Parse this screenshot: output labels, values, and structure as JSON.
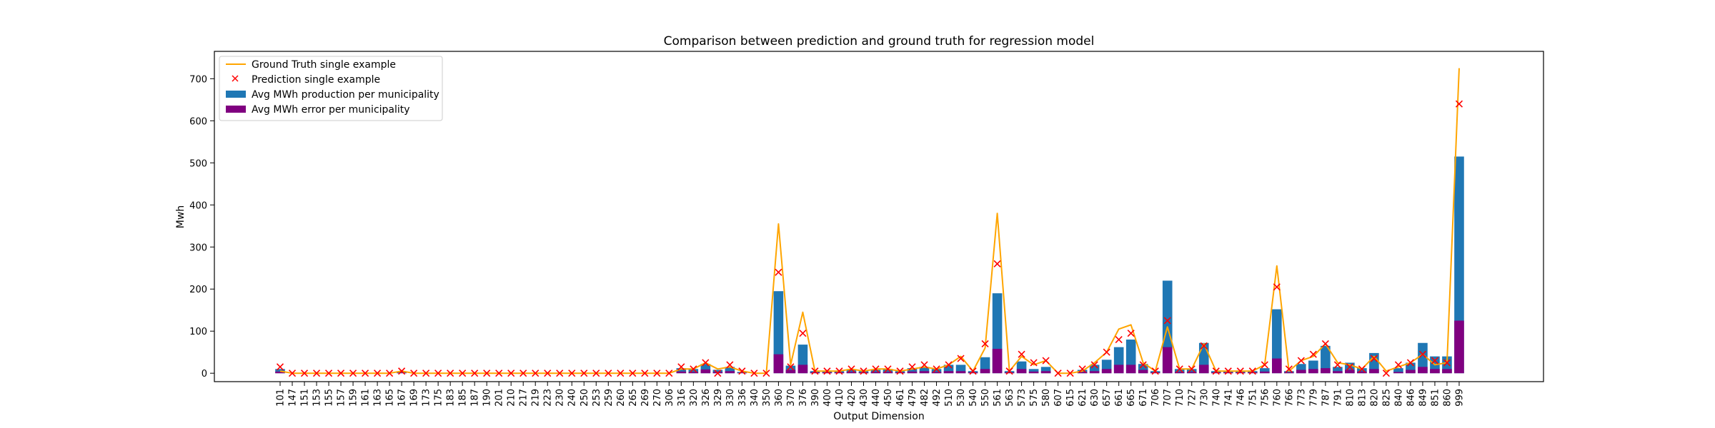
{
  "chart_data": {
    "type": "bar",
    "title": "Comparison between prediction and ground truth for regression model",
    "xlabel": "Output Dimension",
    "ylabel": "Mwh",
    "ylim": [
      -20,
      765
    ],
    "yticks": [
      0,
      100,
      200,
      300,
      400,
      500,
      600,
      700
    ],
    "grid": false,
    "legend_position": "top-left",
    "categories": [
      "101",
      "147",
      "151",
      "153",
      "155",
      "157",
      "159",
      "161",
      "163",
      "165",
      "167",
      "169",
      "173",
      "175",
      "183",
      "185",
      "187",
      "190",
      "201",
      "210",
      "217",
      "219",
      "223",
      "230",
      "240",
      "250",
      "253",
      "259",
      "260",
      "265",
      "269",
      "270",
      "306",
      "316",
      "320",
      "326",
      "329",
      "330",
      "336",
      "340",
      "350",
      "360",
      "370",
      "376",
      "390",
      "400",
      "410",
      "420",
      "430",
      "440",
      "450",
      "461",
      "479",
      "482",
      "492",
      "510",
      "530",
      "540",
      "550",
      "561",
      "563",
      "573",
      "575",
      "580",
      "607",
      "615",
      "621",
      "630",
      "657",
      "661",
      "665",
      "671",
      "706",
      "707",
      "710",
      "727",
      "730",
      "740",
      "741",
      "746",
      "751",
      "756",
      "760",
      "766",
      "773",
      "779",
      "787",
      "791",
      "810",
      "813",
      "820",
      "825",
      "840",
      "846",
      "849",
      "851",
      "860",
      "999"
    ],
    "series": [
      {
        "name": "Ground Truth single example",
        "kind": "line",
        "color": "#ffa500",
        "values": [
          5,
          0,
          0,
          0,
          0,
          0,
          0,
          0,
          0,
          0,
          5,
          0,
          0,
          0,
          0,
          0,
          0,
          0,
          0,
          0,
          0,
          0,
          0,
          0,
          0,
          0,
          0,
          0,
          0,
          0,
          0,
          0,
          0,
          10,
          10,
          25,
          10,
          15,
          5,
          0,
          0,
          355,
          20,
          145,
          5,
          5,
          5,
          10,
          5,
          10,
          10,
          5,
          10,
          15,
          10,
          20,
          40,
          5,
          60,
          380,
          5,
          40,
          20,
          30,
          0,
          0,
          5,
          25,
          50,
          105,
          115,
          25,
          5,
          110,
          10,
          10,
          70,
          5,
          5,
          5,
          5,
          20,
          255,
          5,
          30,
          40,
          70,
          25,
          20,
          10,
          40,
          5,
          15,
          25,
          45,
          20,
          25,
          725
        ]
      },
      {
        "name": "Prediction single example",
        "kind": "scatter",
        "color": "#ff0000",
        "marker": "x",
        "values": [
          15,
          0,
          0,
          0,
          0,
          0,
          0,
          0,
          0,
          0,
          5,
          0,
          0,
          0,
          0,
          0,
          0,
          0,
          0,
          0,
          0,
          0,
          0,
          0,
          0,
          0,
          0,
          0,
          0,
          0,
          0,
          0,
          0,
          15,
          10,
          25,
          0,
          20,
          5,
          0,
          0,
          240,
          15,
          95,
          5,
          5,
          5,
          10,
          5,
          10,
          10,
          5,
          15,
          20,
          10,
          20,
          35,
          5,
          70,
          260,
          5,
          45,
          25,
          30,
          0,
          0,
          10,
          20,
          50,
          80,
          95,
          20,
          5,
          125,
          10,
          10,
          65,
          5,
          5,
          5,
          5,
          20,
          205,
          10,
          30,
          45,
          70,
          20,
          15,
          10,
          35,
          0,
          20,
          25,
          45,
          30,
          25,
          640
        ]
      },
      {
        "name": "Avg MWh production per municipality",
        "kind": "bar",
        "color": "#1f77b4",
        "values": [
          10,
          0,
          0,
          0,
          0,
          0,
          0,
          0,
          0,
          0,
          3,
          0,
          0,
          0,
          0,
          0,
          0,
          0,
          0,
          0,
          0,
          0,
          0,
          0,
          0,
          0,
          0,
          0,
          0,
          0,
          0,
          0,
          0,
          12,
          10,
          22,
          8,
          15,
          3,
          0,
          0,
          195,
          18,
          68,
          5,
          5,
          5,
          8,
          5,
          8,
          10,
          5,
          12,
          15,
          10,
          20,
          20,
          5,
          38,
          190,
          5,
          28,
          10,
          15,
          0,
          0,
          8,
          20,
          32,
          62,
          80,
          22,
          5,
          220,
          10,
          10,
          72,
          5,
          5,
          5,
          5,
          12,
          152,
          5,
          22,
          30,
          65,
          15,
          25,
          12,
          48,
          0,
          12,
          25,
          72,
          40,
          40,
          515
        ]
      },
      {
        "name": "Avg MWh error per municipality",
        "kind": "bar",
        "color": "#800080",
        "values": [
          4,
          0,
          0,
          0,
          0,
          0,
          0,
          0,
          0,
          0,
          1,
          0,
          0,
          0,
          0,
          0,
          0,
          0,
          0,
          0,
          0,
          0,
          0,
          0,
          0,
          0,
          0,
          0,
          0,
          0,
          0,
          0,
          0,
          4,
          3,
          9,
          3,
          5,
          1,
          0,
          0,
          45,
          8,
          20,
          2,
          2,
          2,
          3,
          2,
          3,
          3,
          2,
          4,
          5,
          3,
          5,
          5,
          2,
          10,
          58,
          2,
          10,
          4,
          5,
          0,
          0,
          3,
          5,
          10,
          20,
          20,
          8,
          2,
          62,
          3,
          3,
          20,
          2,
          2,
          2,
          2,
          4,
          35,
          2,
          8,
          10,
          12,
          5,
          8,
          4,
          10,
          0,
          3,
          8,
          15,
          10,
          10,
          125
        ]
      }
    ]
  }
}
